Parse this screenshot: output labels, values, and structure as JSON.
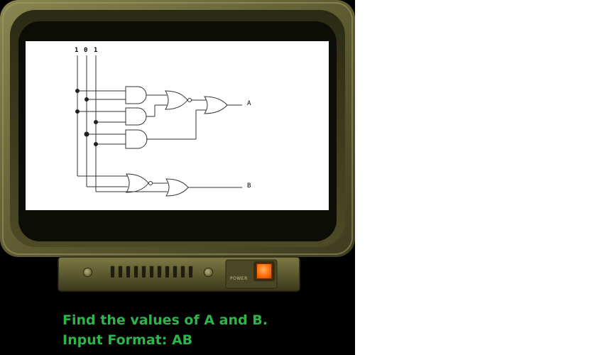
{
  "circuit": {
    "inputs": [
      "1",
      "0",
      "1"
    ],
    "outputs": [
      "A",
      "B"
    ]
  },
  "question": {
    "line1": "Find the values of A and B.",
    "line2": "Input Format: AB"
  },
  "monitor": {
    "power_label": "POWER",
    "bezel_color": "#6b6a3a",
    "screen_color": "#ffffff",
    "power_button_color": "#ff6a00"
  },
  "icons": {
    "power_button": "power-button-icon",
    "screws": "screw-icon",
    "vent": "vent-grille-icon"
  }
}
